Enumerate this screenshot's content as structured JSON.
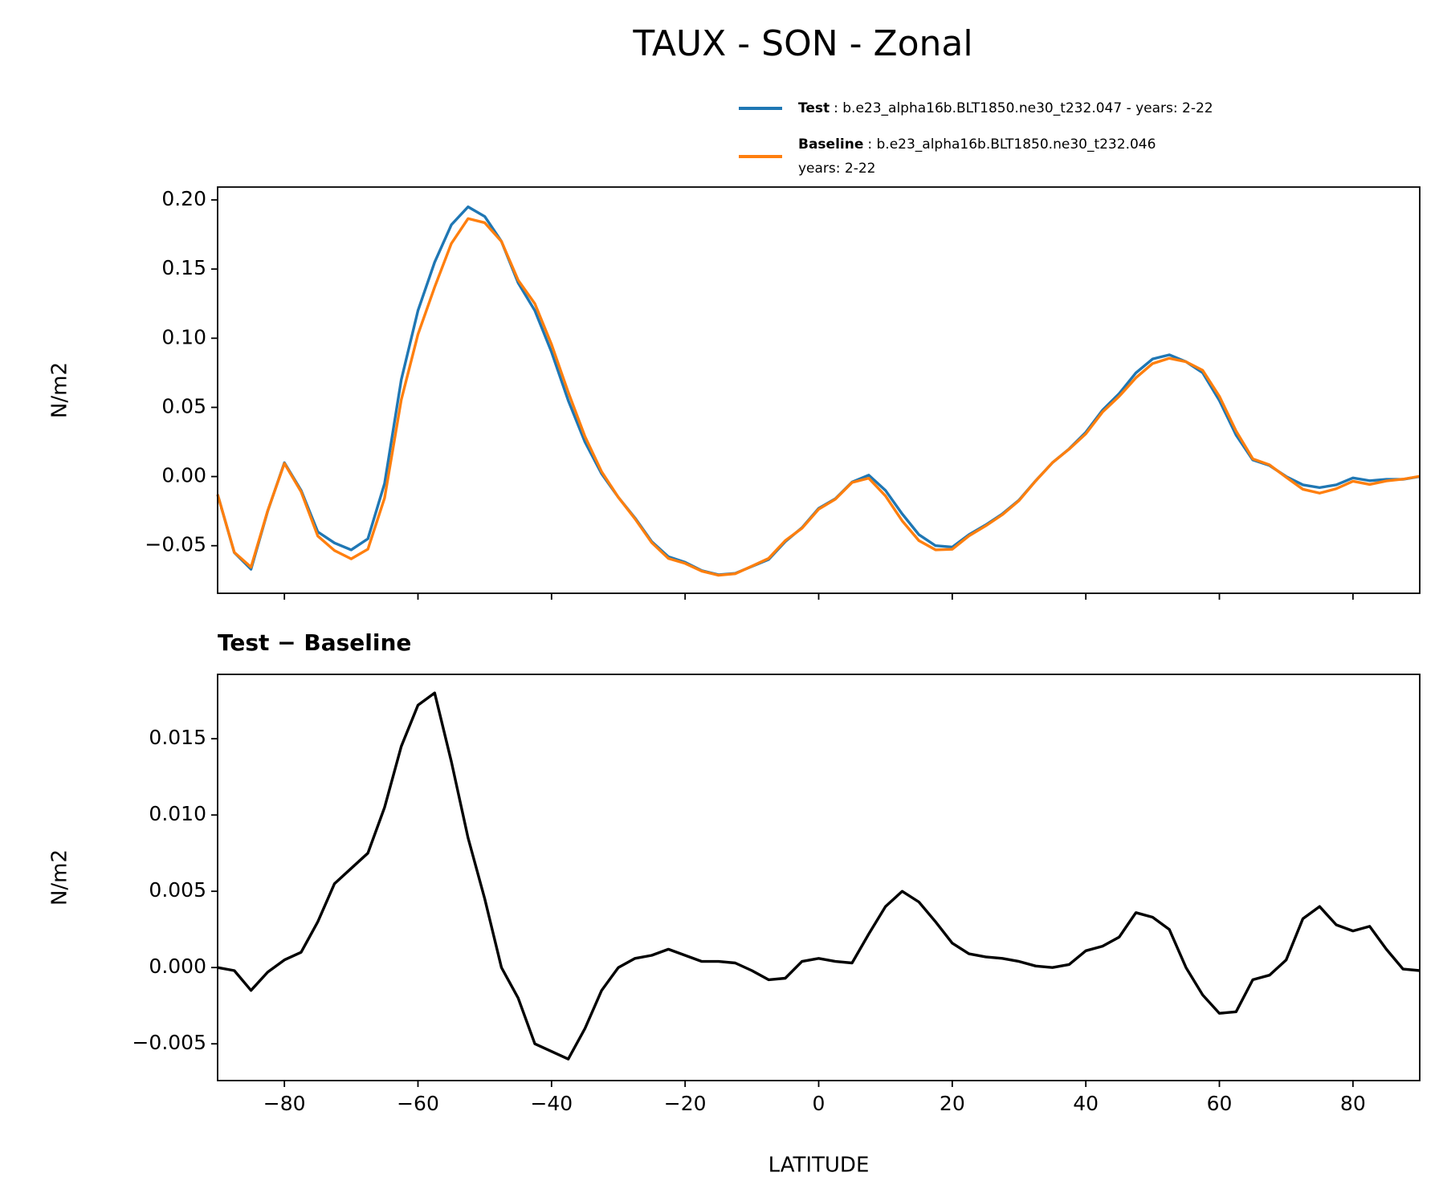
{
  "chart_data": [
    {
      "type": "line",
      "title": "TAUX - SON - Zonal",
      "ylabel": "N/m2",
      "show_xtick_labels": false,
      "x": [
        -90,
        -87.5,
        -85,
        -82.5,
        -80,
        -77.5,
        -75,
        -72.5,
        -70,
        -67.5,
        -65,
        -62.5,
        -60,
        -57.5,
        -55,
        -52.5,
        -50,
        -47.5,
        -45,
        -42.5,
        -40,
        -37.5,
        -35,
        -32.5,
        -30,
        -27.5,
        -25,
        -22.5,
        -20,
        -17.5,
        -15,
        -12.5,
        -10,
        -7.5,
        -5,
        -2.5,
        0,
        2.5,
        5,
        7.5,
        10,
        12.5,
        15,
        17.5,
        20,
        22.5,
        25,
        27.5,
        30,
        32.5,
        35,
        37.5,
        40,
        42.5,
        45,
        47.5,
        50,
        52.5,
        55,
        57.5,
        60,
        62.5,
        65,
        67.5,
        70,
        72.5,
        75,
        77.5,
        80,
        82.5,
        85,
        87.5,
        90
      ],
      "series": [
        {
          "name": "Test",
          "description": [
            ": b.e23_alpha16b.BLT1850.ne30_t232.047 - years: 2-22"
          ],
          "color": "#1f77b4",
          "values": [
            -0.013,
            -0.055,
            -0.067,
            -0.025,
            0.01,
            -0.01,
            -0.04,
            -0.048,
            -0.053,
            -0.045,
            -0.005,
            0.07,
            0.12,
            0.155,
            0.182,
            0.195,
            0.188,
            0.17,
            0.14,
            0.12,
            0.09,
            0.055,
            0.025,
            0.002,
            -0.015,
            -0.03,
            -0.047,
            -0.058,
            -0.062,
            -0.068,
            -0.071,
            -0.07,
            -0.065,
            -0.06,
            -0.047,
            -0.037,
            -0.023,
            -0.016,
            -0.004,
            0.001,
            -0.01,
            -0.027,
            -0.042,
            -0.05,
            -0.051,
            -0.042,
            -0.035,
            -0.027,
            -0.017,
            -0.003,
            0.01,
            0.02,
            0.032,
            0.048,
            0.06,
            0.075,
            0.085,
            0.088,
            0.083,
            0.075,
            0.055,
            0.03,
            0.012,
            0.008,
            0,
            -0.006,
            -0.008,
            -0.006,
            -0.001,
            -0.003,
            -0.002,
            -0.002,
            0
          ]
        },
        {
          "name": "Baseline",
          "description": [
            ": b.e23_alpha16b.BLT1850.ne30_t232.046",
            "years: 2-22"
          ],
          "color": "#ff7f0e",
          "values": [
            -0.013,
            -0.0548,
            -0.0655,
            -0.0247,
            0.0095,
            -0.011,
            -0.043,
            -0.0535,
            -0.0595,
            -0.0525,
            -0.0155,
            0.0555,
            0.1028,
            0.137,
            0.1685,
            0.1865,
            0.1835,
            0.17,
            0.142,
            0.125,
            0.0955,
            0.061,
            0.029,
            0.0035,
            -0.015,
            -0.0306,
            -0.0478,
            -0.0592,
            -0.0628,
            -0.0684,
            -0.0714,
            -0.0703,
            -0.0648,
            -0.0592,
            -0.0463,
            -0.0374,
            -0.0236,
            -0.0164,
            -0.0043,
            -0.0012,
            -0.014,
            -0.032,
            -0.0463,
            -0.053,
            -0.0526,
            -0.0429,
            -0.0357,
            -0.0276,
            -0.0174,
            -0.0031,
            0.01,
            0.0198,
            0.0309,
            0.0466,
            0.058,
            0.0714,
            0.0817,
            0.0855,
            0.083,
            0.0768,
            0.058,
            0.0329,
            0.0128,
            0.0085,
            -0.0005,
            -0.0092,
            -0.012,
            -0.0088,
            -0.0034,
            -0.0057,
            -0.0032,
            -0.0019,
            0.0002
          ]
        }
      ],
      "xlim": [
        -90,
        90
      ],
      "xticks": [
        {
          "value": -80,
          "label": "−80"
        },
        {
          "value": -60,
          "label": "−60"
        },
        {
          "value": -40,
          "label": "−40"
        },
        {
          "value": -20,
          "label": "−20"
        },
        0,
        20,
        40,
        60,
        80
      ],
      "ylim": [
        -0.0844,
        0.2093
      ],
      "yticks": [
        {
          "value": -0.05,
          "label": "−0.05"
        },
        {
          "value": 0,
          "label": "0.00"
        },
        {
          "value": 0.05,
          "label": "0.05"
        },
        {
          "value": 0.1,
          "label": "0.10"
        },
        {
          "value": 0.15,
          "label": "0.15"
        },
        {
          "value": 0.2,
          "label": "0.20"
        }
      ]
    },
    {
      "type": "line",
      "title": "Test − Baseline",
      "ylabel": "N/m2",
      "xlabel": "LATITUDE",
      "show_xtick_labels": true,
      "color": "#000000",
      "x": [
        -90,
        -87.5,
        -85,
        -82.5,
        -80,
        -77.5,
        -75,
        -72.5,
        -70,
        -67.5,
        -65,
        -62.5,
        -60,
        -57.5,
        -55,
        -52.5,
        -50,
        -47.5,
        -45,
        -42.5,
        -40,
        -37.5,
        -35,
        -32.5,
        -30,
        -27.5,
        -25,
        -22.5,
        -20,
        -17.5,
        -15,
        -12.5,
        -10,
        -7.5,
        -5,
        -2.5,
        0,
        2.5,
        5,
        7.5,
        10,
        12.5,
        15,
        17.5,
        20,
        22.5,
        25,
        27.5,
        30,
        32.5,
        35,
        37.5,
        40,
        42.5,
        45,
        47.5,
        50,
        52.5,
        55,
        57.5,
        60,
        62.5,
        65,
        67.5,
        70,
        72.5,
        75,
        77.5,
        80,
        82.5,
        85,
        87.5,
        90
      ],
      "values": [
        0,
        -0.0002,
        -0.0015,
        -0.0003,
        0.0005,
        0.001,
        0.003,
        0.0055,
        0.0065,
        0.0075,
        0.0105,
        0.0145,
        0.0172,
        0.018,
        0.0135,
        0.0085,
        0.0045,
        0,
        -0.002,
        -0.005,
        -0.0055,
        -0.006,
        -0.004,
        -0.0015,
        0,
        0.0006,
        0.0008,
        0.0012,
        0.0008,
        0.0004,
        0.0004,
        0.0003,
        -0.0002,
        -0.0008,
        -0.0007,
        0.0004,
        0.0006,
        0.0004,
        0.0003,
        0.0022,
        0.004,
        0.005,
        0.0043,
        0.003,
        0.0016,
        0.0009,
        0.0007,
        0.0006,
        0.0004,
        0.0001,
        0,
        0.0002,
        0.0011,
        0.0014,
        0.002,
        0.0036,
        0.0033,
        0.0025,
        0,
        -0.0018,
        -0.003,
        -0.0029,
        -0.0008,
        -0.0005,
        0.0005,
        0.0032,
        0.004,
        0.0028,
        0.0024,
        0.0027,
        0.0012,
        -0.0001,
        -0.0002
      ],
      "xlim": [
        -90,
        90
      ],
      "xticks": [
        {
          "value": -80,
          "label": "−80"
        },
        {
          "value": -60,
          "label": "−60"
        },
        {
          "value": -40,
          "label": "−40"
        },
        {
          "value": -20,
          "label": "−20"
        },
        0,
        20,
        40,
        60,
        80
      ],
      "ylim": [
        -0.00741,
        0.01922
      ],
      "yticks": [
        {
          "value": -0.005,
          "label": "−0.005"
        },
        {
          "value": 0,
          "label": "0.000"
        },
        {
          "value": 0.005,
          "label": "0.005"
        },
        {
          "value": 0.01,
          "label": "0.010"
        },
        {
          "value": 0.015,
          "label": "0.015"
        }
      ]
    }
  ]
}
